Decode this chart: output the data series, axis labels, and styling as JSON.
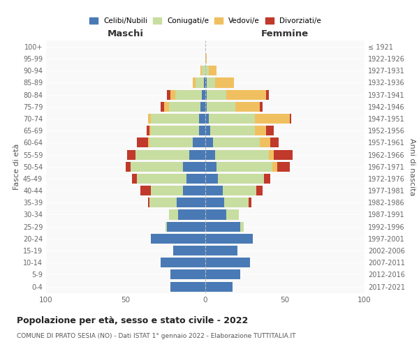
{
  "age_groups": [
    "0-4",
    "5-9",
    "10-14",
    "15-19",
    "20-24",
    "25-29",
    "30-34",
    "35-39",
    "40-44",
    "45-49",
    "50-54",
    "55-59",
    "60-64",
    "65-69",
    "70-74",
    "75-79",
    "80-84",
    "85-89",
    "90-94",
    "95-99",
    "100+"
  ],
  "birth_years": [
    "2017-2021",
    "2012-2016",
    "2007-2011",
    "2002-2006",
    "1997-2001",
    "1992-1996",
    "1987-1991",
    "1982-1986",
    "1977-1981",
    "1972-1976",
    "1967-1971",
    "1962-1966",
    "1957-1961",
    "1952-1956",
    "1947-1951",
    "1942-1946",
    "1937-1941",
    "1932-1936",
    "1927-1931",
    "1922-1926",
    "≤ 1921"
  ],
  "maschi": {
    "celibi": [
      22,
      22,
      28,
      20,
      34,
      24,
      17,
      18,
      14,
      12,
      14,
      10,
      8,
      4,
      4,
      3,
      2,
      1,
      0,
      0,
      0
    ],
    "coniugati": [
      0,
      0,
      0,
      0,
      0,
      1,
      6,
      17,
      20,
      31,
      33,
      34,
      27,
      30,
      30,
      20,
      17,
      5,
      2,
      0,
      0
    ],
    "vedovi": [
      0,
      0,
      0,
      0,
      0,
      0,
      0,
      0,
      0,
      0,
      0,
      0,
      1,
      1,
      2,
      3,
      3,
      2,
      1,
      0,
      0
    ],
    "divorziati": [
      0,
      0,
      0,
      0,
      0,
      0,
      0,
      1,
      7,
      3,
      3,
      5,
      7,
      2,
      0,
      2,
      2,
      0,
      0,
      0,
      0
    ]
  },
  "femmine": {
    "nubili": [
      17,
      22,
      28,
      20,
      30,
      22,
      13,
      12,
      11,
      8,
      7,
      6,
      5,
      3,
      2,
      1,
      1,
      1,
      0,
      0,
      0
    ],
    "coniugate": [
      0,
      0,
      0,
      0,
      0,
      2,
      8,
      15,
      21,
      29,
      35,
      34,
      29,
      28,
      29,
      18,
      12,
      5,
      2,
      0,
      0
    ],
    "vedove": [
      0,
      0,
      0,
      0,
      0,
      0,
      0,
      0,
      0,
      0,
      3,
      3,
      7,
      7,
      22,
      15,
      25,
      12,
      5,
      1,
      0
    ],
    "divorziate": [
      0,
      0,
      0,
      0,
      0,
      0,
      0,
      2,
      4,
      4,
      8,
      12,
      5,
      5,
      1,
      2,
      2,
      0,
      0,
      0,
      0
    ]
  },
  "colors": {
    "celibi": "#4a7ab5",
    "coniugati": "#c8dda0",
    "vedovi": "#f0c060",
    "divorziati": "#c0392b"
  },
  "title": "Popolazione per età, sesso e stato civile - 2022",
  "subtitle": "COMUNE DI PRATO SESIA (NO) - Dati ISTAT 1° gennaio 2022 - Elaborazione TUTTITALIA.IT",
  "xlabel_left": "Maschi",
  "xlabel_right": "Femmine",
  "ylabel_left": "Fasce di età",
  "ylabel_right": "Anni di nascita",
  "xlim": 100,
  "legend_labels": [
    "Celibi/Nubili",
    "Coniugati/e",
    "Vedovi/e",
    "Divorziati/e"
  ],
  "bg_color": "#f9f9f9",
  "fig_bg": "#ffffff"
}
